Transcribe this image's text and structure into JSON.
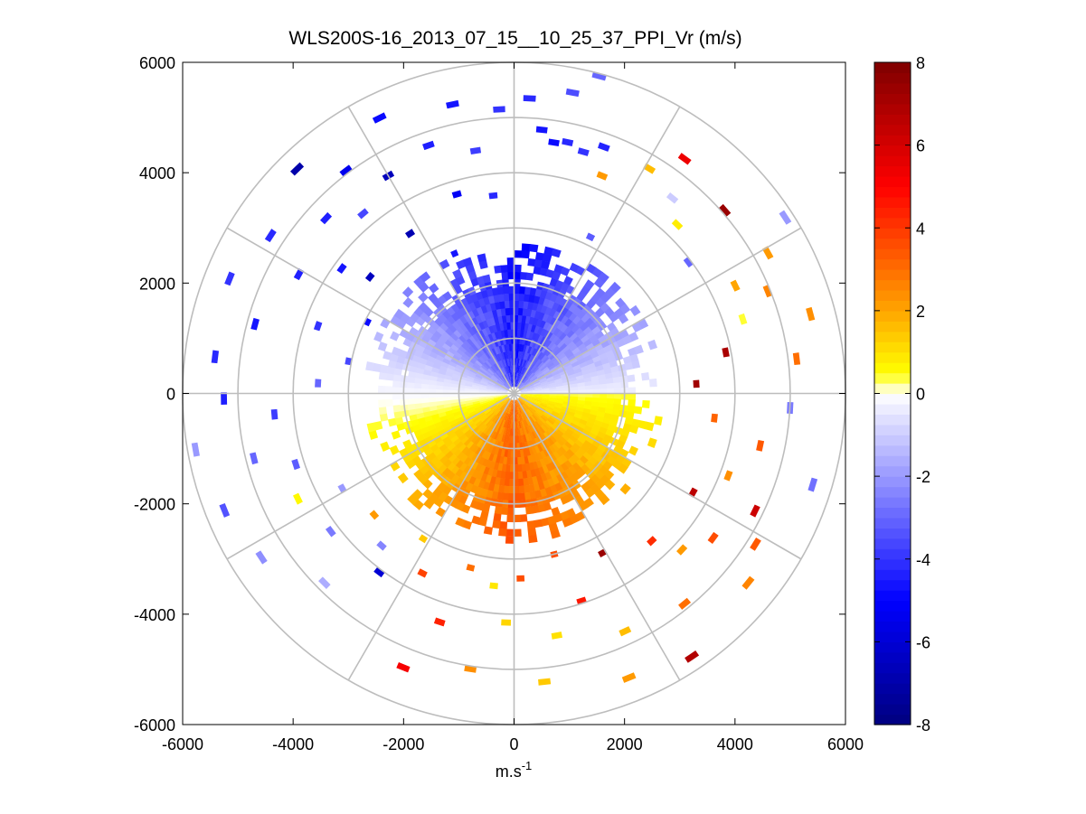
{
  "chart_data": {
    "type": "heatmap",
    "subtype": "polar-ppi",
    "title": "WLS200S-16_2013_07_15__10_25_37_PPI_Vr (m/s)",
    "xlabel": "m.s",
    "xlabel_superscript": "-1",
    "ylabel": "",
    "xlim": [
      -6000,
      6000
    ],
    "ylim": [
      -6000,
      6000
    ],
    "xticks": [
      -6000,
      -4000,
      -2000,
      0,
      2000,
      4000,
      6000
    ],
    "yticks": [
      6000,
      4000,
      2000,
      0,
      -2000,
      -4000,
      -6000
    ],
    "range_rings_m": [
      1000,
      2000,
      3000,
      4000,
      5000,
      6000
    ],
    "spoke_interval_deg": 30,
    "grid": true,
    "colorbar": {
      "label": "",
      "clim": [
        -8,
        8
      ],
      "ticks": [
        8,
        6,
        4,
        2,
        0,
        -2,
        -4,
        -6,
        -8
      ],
      "levels": 64,
      "stops": [
        {
          "value": -8,
          "color": "#00007f"
        },
        {
          "value": -5,
          "color": "#0000ff"
        },
        {
          "value": 0,
          "color": "#ffffff"
        },
        {
          "value": 0.5,
          "color": "#ffff00"
        },
        {
          "value": 2,
          "color": "#ffa500"
        },
        {
          "value": 5,
          "color": "#ff0000"
        },
        {
          "value": 8,
          "color": "#7f0000"
        }
      ]
    },
    "field_description": "Approaching (negative) radial velocity to the north-west sector, receding (positive) to the south-east; wind from roughly the north-west. Dense coverage within ~2.5 km range, sparse returns beyond.",
    "dense_region": {
      "min_range_m": 120,
      "max_range_m": 2600,
      "gates": [
        {
          "az_from": 0,
          "az_to": 90,
          "r_from": 0,
          "r_to": 2600,
          "v_start": -4.5,
          "v_end": -0.2
        },
        {
          "az_from": 90,
          "az_to": 180,
          "r_from": 0,
          "r_to": 2600,
          "v_start": 0.4,
          "v_end": 3.2
        },
        {
          "az_from": 180,
          "az_to": 270,
          "r_from": 0,
          "r_to": 2600,
          "v_start": 3.2,
          "v_end": -0.2
        },
        {
          "az_from": 270,
          "az_to": 360,
          "r_from": 0,
          "r_to": 2600,
          "v_start": -0.2,
          "v_end": -4.5
        }
      ]
    },
    "sparse_returns": [
      {
        "az": 3,
        "r": 5300,
        "v": -4.2
      },
      {
        "az": 6,
        "r": 4750,
        "v": -4.6
      },
      {
        "az": 9,
        "r": 4550,
        "v": -4.8
      },
      {
        "az": 12,
        "r": 4600,
        "v": -4.2
      },
      {
        "az": 16,
        "r": 4500,
        "v": -4.0
      },
      {
        "az": 20,
        "r": 4700,
        "v": -4.3
      },
      {
        "az": 11,
        "r": 5500,
        "v": -3.5
      },
      {
        "az": 15,
        "r": 5900,
        "v": -3.0
      },
      {
        "az": 22,
        "r": 4200,
        "v": 2.2
      },
      {
        "az": 26,
        "r": 3100,
        "v": -3.2
      },
      {
        "az": 31,
        "r": 4700,
        "v": 1.6
      },
      {
        "az": 36,
        "r": 5200,
        "v": 5.4
      },
      {
        "az": 39,
        "r": 4500,
        "v": -1.0
      },
      {
        "az": 44,
        "r": 4200,
        "v": 0.8
      },
      {
        "az": 49,
        "r": 5000,
        "v": 7.4
      },
      {
        "az": 53,
        "r": 3900,
        "v": -3.0
      },
      {
        "az": 57,
        "r": 5800,
        "v": -2.0
      },
      {
        "az": 61,
        "r": 5200,
        "v": 2.2
      },
      {
        "az": 64,
        "r": 4400,
        "v": 2.0
      },
      {
        "az": 68,
        "r": 4900,
        "v": 2.6
      },
      {
        "az": 72,
        "r": 4300,
        "v": 0.4
      },
      {
        "az": 75,
        "r": 5500,
        "v": 2.4
      },
      {
        "az": 79,
        "r": 3850,
        "v": 7.0
      },
      {
        "az": 83,
        "r": 5100,
        "v": 3.0
      },
      {
        "az": 87,
        "r": 3250,
        "v": 7.2
      },
      {
        "az": 93,
        "r": 4950,
        "v": -2.6
      },
      {
        "az": 97,
        "r": 3600,
        "v": 3.2
      },
      {
        "az": 102,
        "r": 4500,
        "v": 3.4
      },
      {
        "az": 107,
        "r": 5600,
        "v": -2.8
      },
      {
        "az": 111,
        "r": 4100,
        "v": 2.4
      },
      {
        "az": 116,
        "r": 4800,
        "v": 6.2
      },
      {
        "az": 119,
        "r": 3650,
        "v": 6.6
      },
      {
        "az": 122,
        "r": 5100,
        "v": 3.4
      },
      {
        "az": 126,
        "r": 4400,
        "v": 3.6
      },
      {
        "az": 129,
        "r": 5400,
        "v": 2.6
      },
      {
        "az": 133,
        "r": 4100,
        "v": 2.2
      },
      {
        "az": 137,
        "r": 3600,
        "v": 4.2
      },
      {
        "az": 141,
        "r": 4850,
        "v": 3.0
      },
      {
        "az": 146,
        "r": 5700,
        "v": 6.8
      },
      {
        "az": 151,
        "r": 3250,
        "v": 7.4
      },
      {
        "az": 155,
        "r": 4700,
        "v": 1.6
      },
      {
        "az": 158,
        "r": 5500,
        "v": 2.2
      },
      {
        "az": 162,
        "r": 3900,
        "v": 4.6
      },
      {
        "az": 166,
        "r": 2950,
        "v": 3.6
      },
      {
        "az": 170,
        "r": 4400,
        "v": 1.0
      },
      {
        "az": 174,
        "r": 5200,
        "v": 1.4
      },
      {
        "az": 178,
        "r": 3300,
        "v": 3.6
      },
      {
        "az": 182,
        "r": 4100,
        "v": 1.2
      },
      {
        "az": 186,
        "r": 3450,
        "v": 0.9
      },
      {
        "az": 189,
        "r": 5000,
        "v": 2.4
      },
      {
        "az": 194,
        "r": 3200,
        "v": 3.0
      },
      {
        "az": 198,
        "r": 4300,
        "v": 4.4
      },
      {
        "az": 202,
        "r": 5300,
        "v": 5.2
      },
      {
        "az": 207,
        "r": 3600,
        "v": 3.8
      },
      {
        "az": 212,
        "r": 3050,
        "v": 1.4
      },
      {
        "az": 217,
        "r": 4000,
        "v": -6.0
      },
      {
        "az": 221,
        "r": 3600,
        "v": -2.4
      },
      {
        "az": 225,
        "r": 4800,
        "v": -1.6
      },
      {
        "az": 229,
        "r": 3300,
        "v": 2.2
      },
      {
        "az": 233,
        "r": 4100,
        "v": -2.6
      },
      {
        "az": 237,
        "r": 5400,
        "v": -2.2
      },
      {
        "az": 241,
        "r": 3500,
        "v": -2.0
      },
      {
        "az": 244,
        "r": 4300,
        "v": 0.6
      },
      {
        "az": 248,
        "r": 5600,
        "v": -3.4
      },
      {
        "az": 252,
        "r": 4100,
        "v": -3.2
      },
      {
        "az": 256,
        "r": 4800,
        "v": -3.0
      },
      {
        "az": 260,
        "r": 5800,
        "v": -2.0
      },
      {
        "az": 265,
        "r": 4300,
        "v": -3.8
      },
      {
        "az": 269,
        "r": 5200,
        "v": -4.4
      },
      {
        "az": 273,
        "r": 3500,
        "v": -3.0
      },
      {
        "az": 277,
        "r": 5400,
        "v": -4.2
      },
      {
        "az": 281,
        "r": 3000,
        "v": -3.6
      },
      {
        "az": 285,
        "r": 4800,
        "v": -4.6
      },
      {
        "az": 289,
        "r": 3700,
        "v": -4.0
      },
      {
        "az": 292,
        "r": 5500,
        "v": -4.0
      },
      {
        "az": 296,
        "r": 2900,
        "v": -4.8
      },
      {
        "az": 299,
        "r": 4400,
        "v": -4.4
      },
      {
        "az": 303,
        "r": 5200,
        "v": -4.2
      },
      {
        "az": 306,
        "r": 3800,
        "v": -4.6
      },
      {
        "az": 309,
        "r": 3300,
        "v": -6.5
      },
      {
        "az": 313,
        "r": 4600,
        "v": -4.4
      },
      {
        "az": 316,
        "r": 5600,
        "v": -7.0
      },
      {
        "az": 320,
        "r": 4200,
        "v": -3.6
      },
      {
        "az": 323,
        "r": 5000,
        "v": -5.4
      },
      {
        "az": 327,
        "r": 3400,
        "v": -6.8
      },
      {
        "az": 330,
        "r": 4500,
        "v": -6.6
      },
      {
        "az": 334,
        "r": 5500,
        "v": -4.8
      },
      {
        "az": 337,
        "r": 2700,
        "v": -4.6
      },
      {
        "az": 341,
        "r": 4700,
        "v": -4.4
      },
      {
        "az": 344,
        "r": 3700,
        "v": -5.2
      },
      {
        "az": 348,
        "r": 5300,
        "v": -4.6
      },
      {
        "az": 351,
        "r": 4400,
        "v": -3.8
      },
      {
        "az": 354,
        "r": 3550,
        "v": -4.2
      },
      {
        "az": 357,
        "r": 5100,
        "v": -4.0
      }
    ]
  }
}
